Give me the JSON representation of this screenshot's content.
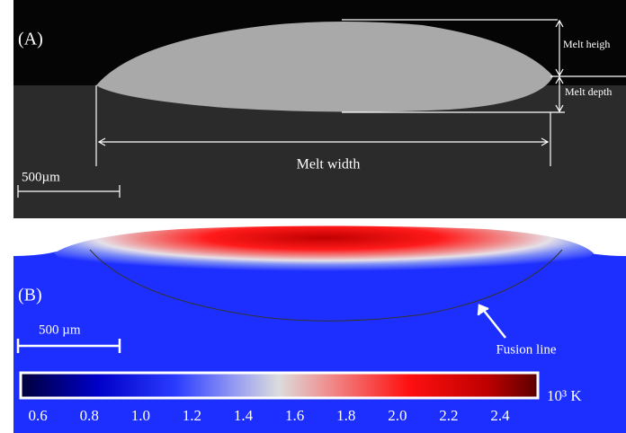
{
  "panel_a": {
    "label": "(A)",
    "melt_height": "Melt heigh",
    "melt_depth": "Melt depth",
    "melt_width": "Melt width",
    "scale_bar": "500µm"
  },
  "panel_b": {
    "label": "(B)",
    "scale_bar": "500 µm",
    "fusion_line": "Fusion line",
    "colorbar": {
      "range": [
        0.54,
        2.54
      ],
      "unit": "10³ K",
      "ticks": [
        {
          "value": 0.6,
          "label": "0.6"
        },
        {
          "value": 0.8,
          "label": "0.8"
        },
        {
          "value": 1.0,
          "label": "1.0"
        },
        {
          "value": 1.2,
          "label": "1.2"
        },
        {
          "value": 1.4,
          "label": "1.4"
        },
        {
          "value": 1.6,
          "label": "1.6"
        },
        {
          "value": 1.8,
          "label": "1.8"
        },
        {
          "value": 2.0,
          "label": "2.0"
        },
        {
          "value": 2.2,
          "label": "2.2"
        },
        {
          "value": 2.4,
          "label": "2.4"
        }
      ]
    }
  }
}
